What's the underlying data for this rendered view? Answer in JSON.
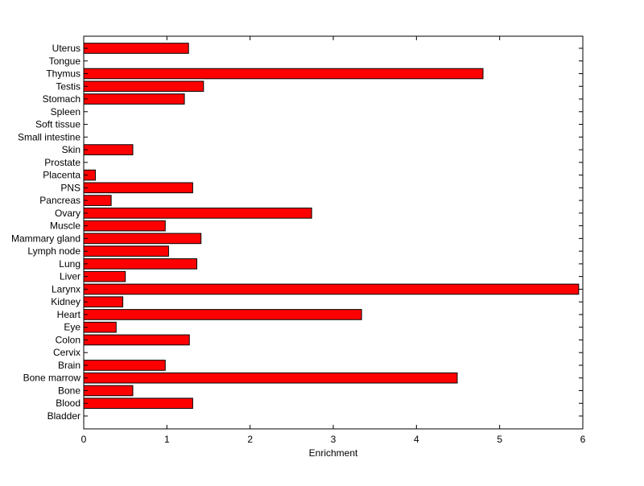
{
  "chart_data": {
    "type": "bar",
    "orientation": "horizontal",
    "title": "",
    "xlabel": "Enrichment",
    "ylabel": "",
    "xlim": [
      0,
      6
    ],
    "xticks": [
      "0",
      "1",
      "2",
      "3",
      "4",
      "5",
      "6"
    ],
    "grid": false,
    "legend": "none",
    "bar_color": "#ff0000",
    "bar_edge_color": "#000000",
    "categories": [
      "Bladder",
      "Blood",
      "Bone",
      "Bone marrow",
      "Brain",
      "Cervix",
      "Colon",
      "Eye",
      "Heart",
      "Kidney",
      "Larynx",
      "Liver",
      "Lung",
      "Lymph node",
      "Mammary gland",
      "Muscle",
      "Ovary",
      "Pancreas",
      "PNS",
      "Placenta",
      "Prostate",
      "Skin",
      "Small intestine",
      "Soft tissue",
      "Spleen",
      "Stomach",
      "Testis",
      "Thymus",
      "Tongue",
      "Uterus"
    ],
    "values": [
      0,
      1.31,
      0.59,
      4.49,
      0.98,
      0,
      1.27,
      0.39,
      3.34,
      0.47,
      5.95,
      0.5,
      1.36,
      1.02,
      1.41,
      0.98,
      2.74,
      0.33,
      1.31,
      0.14,
      0,
      0.59,
      0,
      0,
      0,
      1.21,
      1.44,
      4.8,
      0,
      1.26
    ]
  }
}
